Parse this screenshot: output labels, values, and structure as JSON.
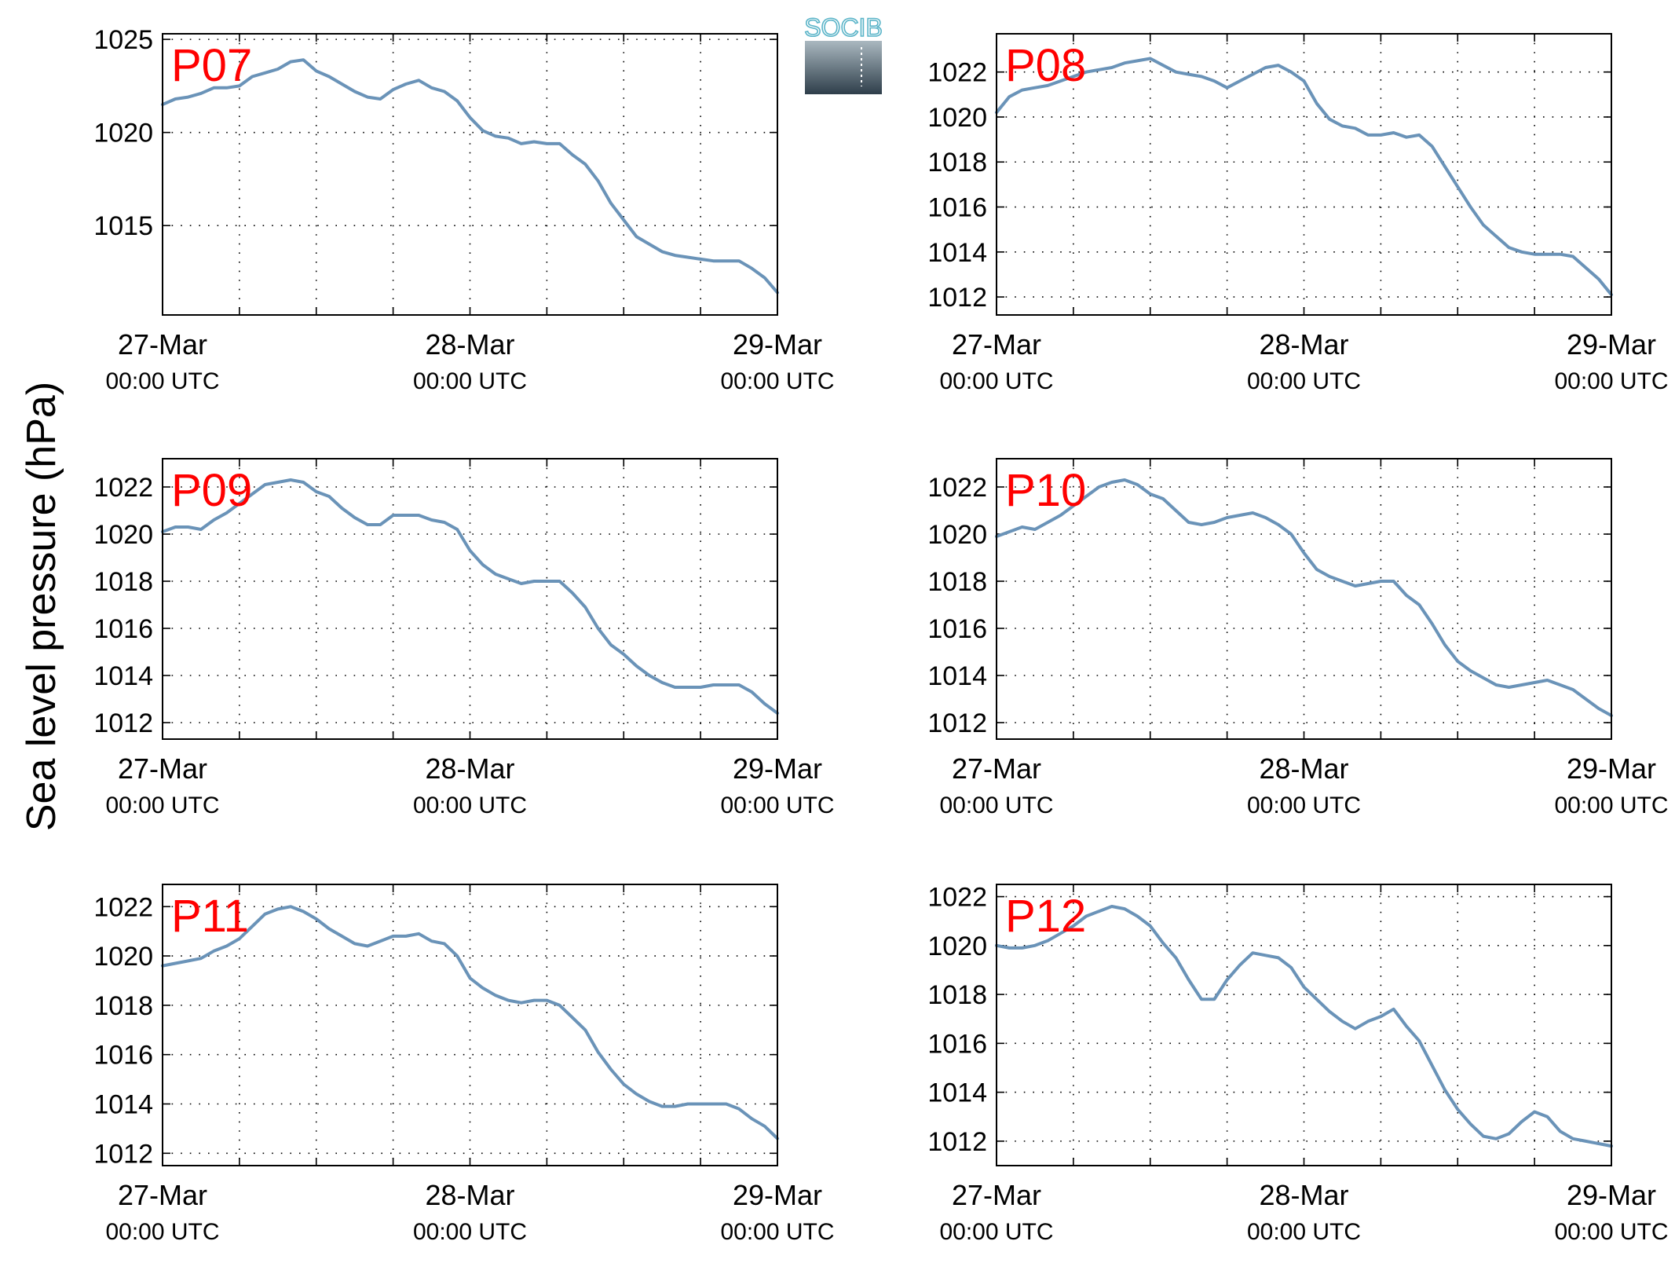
{
  "figure": {
    "ylabel": "Sea level pressure (hPa)",
    "logo_text": "SOCIB",
    "line_color": "#6a93b8",
    "station_color": "#ff0000",
    "logo_color": "#5ab4c8"
  },
  "chart_data": [
    {
      "type": "line",
      "station": "P07",
      "x_ticks": [
        {
          "date": "27-Mar",
          "time": "00:00 UTC"
        },
        {
          "date": "28-Mar",
          "time": "00:00 UTC"
        },
        {
          "date": "29-Mar",
          "time": "00:00 UTC"
        }
      ],
      "xlim": [
        0,
        48
      ],
      "ylim": [
        1010.2,
        1025.3
      ],
      "yticks": [
        1015,
        1020,
        1025
      ],
      "grid": true,
      "series": [
        {
          "x": [
            0,
            1,
            2,
            3,
            4,
            5,
            6,
            7,
            8,
            9,
            10,
            11,
            12,
            13,
            14,
            15,
            16,
            17,
            18,
            19,
            20,
            21,
            22,
            23,
            24,
            25,
            26,
            27,
            28,
            29,
            30,
            31,
            32,
            33,
            34,
            35,
            36,
            37,
            38,
            39,
            40,
            41,
            42,
            43,
            44,
            45,
            46,
            47,
            48
          ],
          "values": [
            1021.5,
            1021.8,
            1021.9,
            1022.1,
            1022.4,
            1022.4,
            1022.5,
            1023.0,
            1023.2,
            1023.4,
            1023.8,
            1023.9,
            1023.3,
            1023.0,
            1022.6,
            1022.2,
            1021.9,
            1021.8,
            1022.3,
            1022.6,
            1022.8,
            1022.4,
            1022.2,
            1021.7,
            1020.8,
            1020.1,
            1019.8,
            1019.7,
            1019.4,
            1019.5,
            1019.4,
            1019.4,
            1018.8,
            1018.3,
            1017.4,
            1016.2,
            1015.3,
            1014.4,
            1014.0,
            1013.6,
            1013.4,
            1013.3,
            1013.2,
            1013.1,
            1013.1,
            1013.1,
            1012.7,
            1012.2,
            1011.4
          ]
        }
      ]
    },
    {
      "type": "line",
      "station": "P08",
      "x_ticks": [
        {
          "date": "27-Mar",
          "time": "00:00 UTC"
        },
        {
          "date": "28-Mar",
          "time": "00:00 UTC"
        },
        {
          "date": "29-Mar",
          "time": "00:00 UTC"
        }
      ],
      "xlim": [
        0,
        48
      ],
      "ylim": [
        1011.2,
        1023.7
      ],
      "yticks": [
        1012,
        1014,
        1016,
        1018,
        1020,
        1022
      ],
      "grid": true,
      "series": [
        {
          "x": [
            0,
            1,
            2,
            3,
            4,
            5,
            6,
            7,
            8,
            9,
            10,
            11,
            12,
            13,
            14,
            15,
            16,
            17,
            18,
            19,
            20,
            21,
            22,
            23,
            24,
            25,
            26,
            27,
            28,
            29,
            30,
            31,
            32,
            33,
            34,
            35,
            36,
            37,
            38,
            39,
            40,
            41,
            42,
            43,
            44,
            45,
            46,
            47,
            48
          ],
          "values": [
            1020.2,
            1020.9,
            1021.2,
            1021.3,
            1021.4,
            1021.6,
            1021.8,
            1022.0,
            1022.1,
            1022.2,
            1022.4,
            1022.5,
            1022.6,
            1022.3,
            1022.0,
            1021.9,
            1021.8,
            1021.6,
            1021.3,
            1021.6,
            1021.9,
            1022.2,
            1022.3,
            1022.0,
            1021.6,
            1020.6,
            1019.9,
            1019.6,
            1019.5,
            1019.2,
            1019.2,
            1019.3,
            1019.1,
            1019.2,
            1018.7,
            1017.8,
            1016.9,
            1016.0,
            1015.2,
            1014.7,
            1014.2,
            1014.0,
            1013.9,
            1013.9,
            1013.9,
            1013.8,
            1013.3,
            1012.8,
            1012.1
          ]
        }
      ]
    },
    {
      "type": "line",
      "station": "P09",
      "x_ticks": [
        {
          "date": "27-Mar",
          "time": "00:00 UTC"
        },
        {
          "date": "28-Mar",
          "time": "00:00 UTC"
        },
        {
          "date": "29-Mar",
          "time": "00:00 UTC"
        }
      ],
      "xlim": [
        0,
        48
      ],
      "ylim": [
        1011.3,
        1023.2
      ],
      "yticks": [
        1012,
        1014,
        1016,
        1018,
        1020,
        1022
      ],
      "grid": true,
      "series": [
        {
          "x": [
            0,
            1,
            2,
            3,
            4,
            5,
            6,
            7,
            8,
            9,
            10,
            11,
            12,
            13,
            14,
            15,
            16,
            17,
            18,
            19,
            20,
            21,
            22,
            23,
            24,
            25,
            26,
            27,
            28,
            29,
            30,
            31,
            32,
            33,
            34,
            35,
            36,
            37,
            38,
            39,
            40,
            41,
            42,
            43,
            44,
            45,
            46,
            47,
            48
          ],
          "values": [
            1020.1,
            1020.3,
            1020.3,
            1020.2,
            1020.6,
            1020.9,
            1021.3,
            1021.7,
            1022.1,
            1022.2,
            1022.3,
            1022.2,
            1021.8,
            1021.6,
            1021.1,
            1020.7,
            1020.4,
            1020.4,
            1020.8,
            1020.8,
            1020.8,
            1020.6,
            1020.5,
            1020.2,
            1019.3,
            1018.7,
            1018.3,
            1018.1,
            1017.9,
            1018.0,
            1018.0,
            1018.0,
            1017.5,
            1016.9,
            1016.0,
            1015.3,
            1014.9,
            1014.4,
            1014.0,
            1013.7,
            1013.5,
            1013.5,
            1013.5,
            1013.6,
            1013.6,
            1013.6,
            1013.3,
            1012.8,
            1012.4
          ]
        }
      ]
    },
    {
      "type": "line",
      "station": "P10",
      "x_ticks": [
        {
          "date": "27-Mar",
          "time": "00:00 UTC"
        },
        {
          "date": "28-Mar",
          "time": "00:00 UTC"
        },
        {
          "date": "29-Mar",
          "time": "00:00 UTC"
        }
      ],
      "xlim": [
        0,
        48
      ],
      "ylim": [
        1011.3,
        1023.2
      ],
      "yticks": [
        1012,
        1014,
        1016,
        1018,
        1020,
        1022
      ],
      "grid": true,
      "series": [
        {
          "x": [
            0,
            1,
            2,
            3,
            4,
            5,
            6,
            7,
            8,
            9,
            10,
            11,
            12,
            13,
            14,
            15,
            16,
            17,
            18,
            19,
            20,
            21,
            22,
            23,
            24,
            25,
            26,
            27,
            28,
            29,
            30,
            31,
            32,
            33,
            34,
            35,
            36,
            37,
            38,
            39,
            40,
            41,
            42,
            43,
            44,
            45,
            46,
            47,
            48
          ],
          "values": [
            1019.9,
            1020.1,
            1020.3,
            1020.2,
            1020.5,
            1020.8,
            1021.2,
            1021.6,
            1022.0,
            1022.2,
            1022.3,
            1022.1,
            1021.7,
            1021.5,
            1021.0,
            1020.5,
            1020.4,
            1020.5,
            1020.7,
            1020.8,
            1020.9,
            1020.7,
            1020.4,
            1020.0,
            1019.2,
            1018.5,
            1018.2,
            1018.0,
            1017.8,
            1017.9,
            1018.0,
            1018.0,
            1017.4,
            1017.0,
            1016.2,
            1015.3,
            1014.6,
            1014.2,
            1013.9,
            1013.6,
            1013.5,
            1013.6,
            1013.7,
            1013.8,
            1013.6,
            1013.4,
            1013.0,
            1012.6,
            1012.3
          ]
        }
      ]
    },
    {
      "type": "line",
      "station": "P11",
      "x_ticks": [
        {
          "date": "27-Mar",
          "time": "00:00 UTC"
        },
        {
          "date": "28-Mar",
          "time": "00:00 UTC"
        },
        {
          "date": "29-Mar",
          "time": "00:00 UTC"
        }
      ],
      "xlim": [
        0,
        48
      ],
      "ylim": [
        1011.5,
        1022.9
      ],
      "yticks": [
        1012,
        1014,
        1016,
        1018,
        1020,
        1022
      ],
      "grid": true,
      "series": [
        {
          "x": [
            0,
            1,
            2,
            3,
            4,
            5,
            6,
            7,
            8,
            9,
            10,
            11,
            12,
            13,
            14,
            15,
            16,
            17,
            18,
            19,
            20,
            21,
            22,
            23,
            24,
            25,
            26,
            27,
            28,
            29,
            30,
            31,
            32,
            33,
            34,
            35,
            36,
            37,
            38,
            39,
            40,
            41,
            42,
            43,
            44,
            45,
            46,
            47,
            48
          ],
          "values": [
            1019.6,
            1019.7,
            1019.8,
            1019.9,
            1020.2,
            1020.4,
            1020.7,
            1021.2,
            1021.7,
            1021.9,
            1022.0,
            1021.8,
            1021.5,
            1021.1,
            1020.8,
            1020.5,
            1020.4,
            1020.6,
            1020.8,
            1020.8,
            1020.9,
            1020.6,
            1020.5,
            1020.0,
            1019.1,
            1018.7,
            1018.4,
            1018.2,
            1018.1,
            1018.2,
            1018.2,
            1018.0,
            1017.5,
            1017.0,
            1016.1,
            1015.4,
            1014.8,
            1014.4,
            1014.1,
            1013.9,
            1013.9,
            1014.0,
            1014.0,
            1014.0,
            1014.0,
            1013.8,
            1013.4,
            1013.1,
            1012.6
          ]
        }
      ]
    },
    {
      "type": "line",
      "station": "P12",
      "x_ticks": [
        {
          "date": "27-Mar",
          "time": "00:00 UTC"
        },
        {
          "date": "28-Mar",
          "time": "00:00 UTC"
        },
        {
          "date": "29-Mar",
          "time": "00:00 UTC"
        }
      ],
      "xlim": [
        0,
        48
      ],
      "ylim": [
        1011.0,
        1022.5
      ],
      "yticks": [
        1012,
        1014,
        1016,
        1018,
        1020,
        1022
      ],
      "grid": true,
      "series": [
        {
          "x": [
            0,
            1,
            2,
            3,
            4,
            5,
            6,
            7,
            8,
            9,
            10,
            11,
            12,
            13,
            14,
            15,
            16,
            17,
            18,
            19,
            20,
            21,
            22,
            23,
            24,
            25,
            26,
            27,
            28,
            29,
            30,
            31,
            32,
            33,
            34,
            35,
            36,
            37,
            38,
            39,
            40,
            41,
            42,
            43,
            44,
            45,
            46,
            47,
            48
          ],
          "values": [
            1020.0,
            1019.9,
            1019.9,
            1020.0,
            1020.2,
            1020.5,
            1020.8,
            1021.2,
            1021.4,
            1021.6,
            1021.5,
            1021.2,
            1020.8,
            1020.1,
            1019.5,
            1018.6,
            1017.8,
            1017.8,
            1018.6,
            1019.2,
            1019.7,
            1019.6,
            1019.5,
            1019.1,
            1018.3,
            1017.8,
            1017.3,
            1016.9,
            1016.6,
            1016.9,
            1017.1,
            1017.4,
            1016.7,
            1016.1,
            1015.1,
            1014.1,
            1013.3,
            1012.7,
            1012.2,
            1012.1,
            1012.3,
            1012.8,
            1013.2,
            1013.0,
            1012.4,
            1012.1,
            1012.0,
            1011.9,
            1011.8
          ]
        }
      ]
    }
  ]
}
